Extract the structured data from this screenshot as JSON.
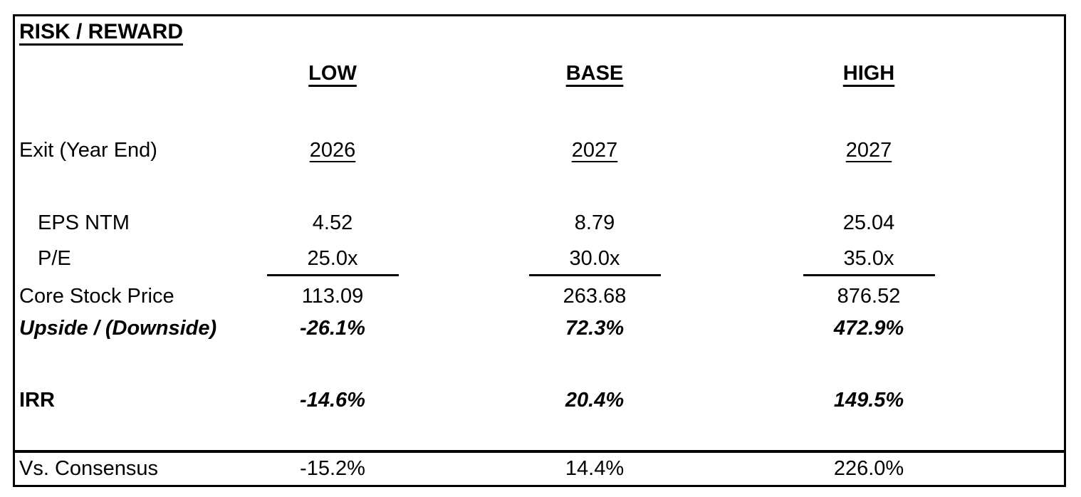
{
  "title": "RISK / REWARD",
  "columns": {
    "low": "LOW",
    "base": "BASE",
    "high": "HIGH"
  },
  "rows": {
    "exit": {
      "label": "Exit (Year End)",
      "low": "2026",
      "base": "2027",
      "high": "2027"
    },
    "eps_ntm": {
      "label": "EPS NTM",
      "low": "4.52",
      "base": "8.79",
      "high": "25.04"
    },
    "pe": {
      "label": "P/E",
      "low": "25.0x",
      "base": "30.0x",
      "high": "35.0x"
    },
    "core_stock_price": {
      "label": "Core Stock Price",
      "low": "113.09",
      "base": "263.68",
      "high": "876.52"
    },
    "upside_downside": {
      "label": "Upside / (Downside)",
      "low": "-26.1%",
      "base": "72.3%",
      "high": "472.9%"
    },
    "irr": {
      "label": "IRR",
      "low": "-14.6%",
      "base": "20.4%",
      "high": "149.5%"
    },
    "vs_consensus": {
      "label": "Vs. Consensus",
      "low": "-15.2%",
      "base": "14.4%",
      "high": "226.0%"
    }
  },
  "colors": {
    "text": "#000000",
    "border": "#000000",
    "background": "#ffffff"
  }
}
